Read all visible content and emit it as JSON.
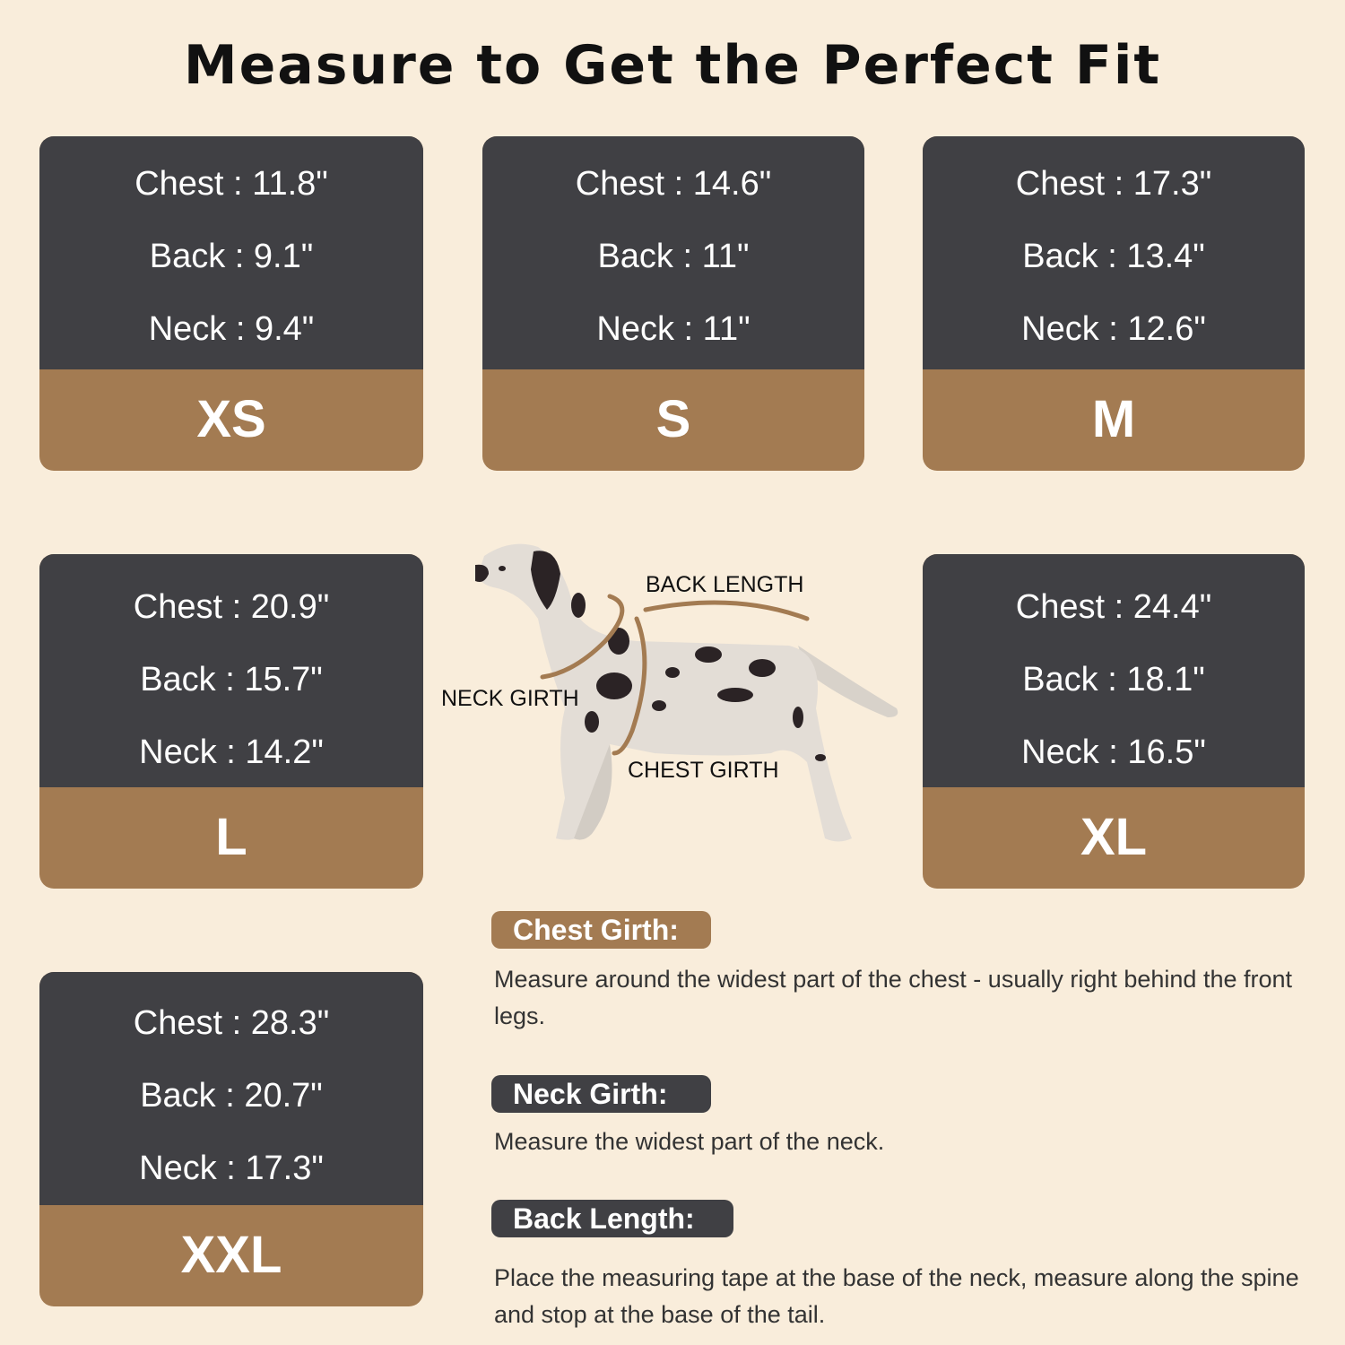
{
  "title": "Measure to Get the Perfect Fit",
  "colors": {
    "background": "#f9eddb",
    "card_dark": "#404044",
    "card_accent": "#a37b52"
  },
  "sizes": [
    {
      "size": "XS",
      "chest": "Chest : 11.8\"",
      "back": "Back : 9.1\"",
      "neck": "Neck : 9.4\""
    },
    {
      "size": "S",
      "chest": "Chest : 14.6\"",
      "back": "Back : 11\"",
      "neck": "Neck : 11\""
    },
    {
      "size": "M",
      "chest": "Chest : 17.3\"",
      "back": "Back : 13.4\"",
      "neck": "Neck : 12.6\""
    },
    {
      "size": "L",
      "chest": "Chest : 20.9\"",
      "back": "Back : 15.7\"",
      "neck": "Neck : 14.2\""
    },
    {
      "size": "XL",
      "chest": "Chest : 24.4\"",
      "back": "Back : 18.1\"",
      "neck": "Neck : 16.5\""
    },
    {
      "size": "XXL",
      "chest": "Chest : 28.3\"",
      "back": "Back : 20.7\"",
      "neck": "Neck : 17.3\""
    }
  ],
  "diagram": {
    "back_length": "BACK LENGTH",
    "neck_girth": "NECK GIRTH",
    "chest_girth": "CHEST GIRTH"
  },
  "instructions": [
    {
      "label": "Chest Girth:",
      "text": "Measure around the widest part of the chest - usually right behind the front legs."
    },
    {
      "label": "Neck Girth:",
      "text": "Measure the widest part of the neck."
    },
    {
      "label": "Back Length:",
      "text": "Place the measuring tape at the base of the neck, measure along the spine and stop at the base of the tail."
    }
  ]
}
